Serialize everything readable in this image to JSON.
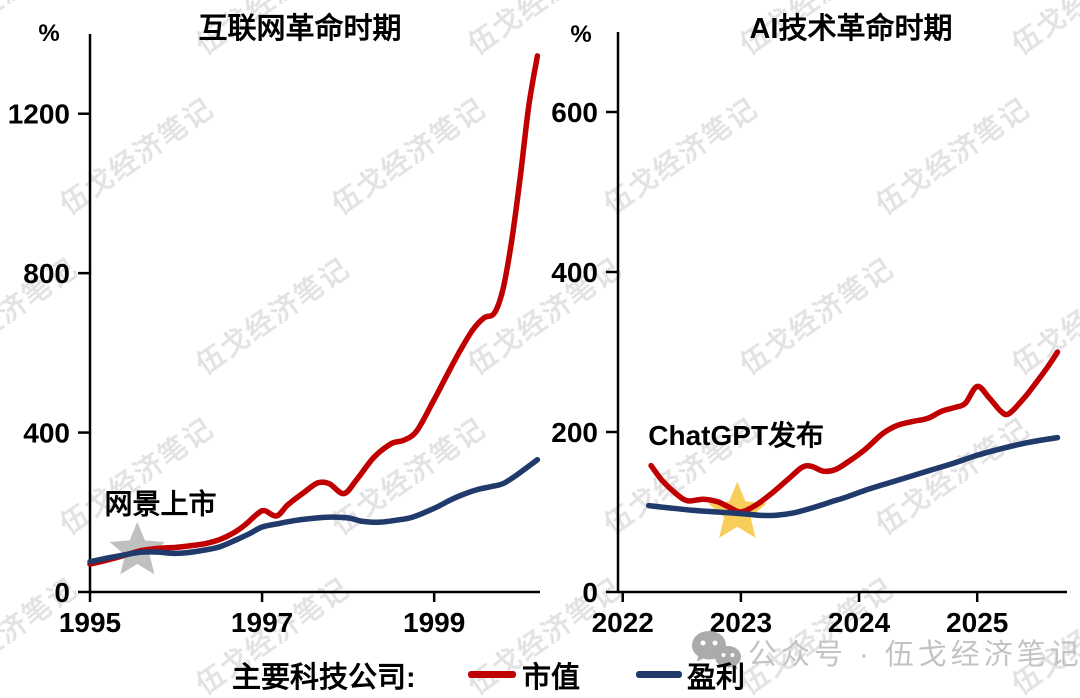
{
  "watermark": {
    "text": "伍戈经济笔记"
  },
  "footer": {
    "icon": "wechat-icon",
    "text": "公众号 · 伍戈经济笔记"
  },
  "legend": {
    "prefix": "主要科技公司:",
    "items": [
      {
        "key": "market-cap",
        "label": "市值",
        "color": "#c00000"
      },
      {
        "key": "profit",
        "label": "盈利",
        "color": "#1f3a6b"
      }
    ]
  },
  "colors": {
    "title_red": "#e60000",
    "curve_red": "#c00000",
    "curve_navy": "#1f3a6b",
    "star_gray": "#b9b9b9",
    "star_gold": "#f6c94a",
    "axis_black": "#000000"
  },
  "chart_data": [
    {
      "id": "internet-era",
      "type": "line",
      "title": "互联网革命时期",
      "unit_label": "%",
      "xlim": [
        1995,
        2000.23
      ],
      "ylim": [
        0,
        1400
      ],
      "x_ticks": [
        1995,
        1997,
        1999
      ],
      "y_ticks": [
        0,
        400,
        800,
        1200
      ],
      "grid": false,
      "legend_position": "bottom",
      "annotation": {
        "text": "网景上市",
        "star": {
          "x": 1995.55,
          "y": 103,
          "color": "#b9b9b9",
          "outer_r": 29
        },
        "label_pos": {
          "x": 1995.82,
          "y": 222
        }
      },
      "series": [
        {
          "key": "market-cap",
          "name": "市值",
          "color": "#c00000",
          "points": [
            [
              1995.0,
              70
            ],
            [
              1995.2,
              80
            ],
            [
              1995.45,
              95
            ],
            [
              1995.6,
              104
            ],
            [
              1995.8,
              110
            ],
            [
              1996.0,
              112
            ],
            [
              1996.2,
              117
            ],
            [
              1996.35,
              122
            ],
            [
              1996.5,
              131
            ],
            [
              1996.65,
              146
            ],
            [
              1996.8,
              168
            ],
            [
              1996.95,
              197
            ],
            [
              1997.03,
              204
            ],
            [
              1997.17,
              191
            ],
            [
              1997.3,
              219
            ],
            [
              1997.5,
              252
            ],
            [
              1997.65,
              274
            ],
            [
              1997.78,
              272
            ],
            [
              1997.95,
              247
            ],
            [
              1998.1,
              282
            ],
            [
              1998.3,
              338
            ],
            [
              1998.5,
              372
            ],
            [
              1998.65,
              381
            ],
            [
              1998.8,
              405
            ],
            [
              1999.0,
              483
            ],
            [
              1999.15,
              545
            ],
            [
              1999.3,
              605
            ],
            [
              1999.45,
              658
            ],
            [
              1999.58,
              688
            ],
            [
              1999.7,
              700
            ],
            [
              1999.8,
              760
            ],
            [
              1999.9,
              880
            ],
            [
              2000.0,
              1040
            ],
            [
              2000.1,
              1220
            ],
            [
              2000.2,
              1345
            ]
          ]
        },
        {
          "key": "profit",
          "name": "盈利",
          "color": "#1f3a6b",
          "points": [
            [
              1995.0,
              76
            ],
            [
              1995.2,
              85
            ],
            [
              1995.45,
              95
            ],
            [
              1995.6,
              100
            ],
            [
              1995.8,
              100
            ],
            [
              1995.95,
              97
            ],
            [
              1996.1,
              98
            ],
            [
              1996.3,
              104
            ],
            [
              1996.5,
              113
            ],
            [
              1996.7,
              131
            ],
            [
              1996.85,
              146
            ],
            [
              1997.0,
              163
            ],
            [
              1997.2,
              172
            ],
            [
              1997.4,
              180
            ],
            [
              1997.6,
              185
            ],
            [
              1997.8,
              188
            ],
            [
              1998.0,
              186
            ],
            [
              1998.15,
              178
            ],
            [
              1998.35,
              175
            ],
            [
              1998.55,
              180
            ],
            [
              1998.75,
              188
            ],
            [
              1999.0,
              210
            ],
            [
              1999.2,
              232
            ],
            [
              1999.35,
              246
            ],
            [
              1999.5,
              257
            ],
            [
              1999.65,
              264
            ],
            [
              1999.8,
              272
            ],
            [
              1999.95,
              292
            ],
            [
              2000.1,
              316
            ],
            [
              2000.2,
              332
            ]
          ]
        }
      ]
    },
    {
      "id": "ai-era",
      "type": "line",
      "title": "AI技术革命时期",
      "unit_label": "%",
      "xlim": [
        2021.96,
        2025.76
      ],
      "ylim": [
        0,
        700
      ],
      "x_ticks": [
        2022,
        2023,
        2024,
        2025
      ],
      "y_ticks": [
        0,
        200,
        400,
        600
      ],
      "grid": false,
      "legend_position": "bottom",
      "annotation": {
        "text": "ChatGPT发布",
        "star": {
          "x": 2022.97,
          "y": 99,
          "color": "#f6c94a",
          "outer_r": 31
        },
        "label_pos": {
          "x": 2022.96,
          "y": 196
        }
      },
      "series": [
        {
          "key": "market-cap",
          "name": "市值",
          "color": "#c00000",
          "points": [
            [
              2022.24,
              158
            ],
            [
              2022.33,
              140
            ],
            [
              2022.45,
              123
            ],
            [
              2022.55,
              114
            ],
            [
              2022.68,
              116
            ],
            [
              2022.8,
              113
            ],
            [
              2022.9,
              106
            ],
            [
              2023.0,
              100
            ],
            [
              2023.12,
              108
            ],
            [
              2023.25,
              122
            ],
            [
              2023.4,
              141
            ],
            [
              2023.52,
              156
            ],
            [
              2023.6,
              157
            ],
            [
              2023.7,
              151
            ],
            [
              2023.8,
              153
            ],
            [
              2023.92,
              164
            ],
            [
              2024.05,
              178
            ],
            [
              2024.2,
              198
            ],
            [
              2024.32,
              208
            ],
            [
              2024.45,
              213
            ],
            [
              2024.58,
              217
            ],
            [
              2024.7,
              226
            ],
            [
              2024.82,
              231
            ],
            [
              2024.9,
              236
            ],
            [
              2025.0,
              257
            ],
            [
              2025.1,
              243
            ],
            [
              2025.2,
              226
            ],
            [
              2025.27,
              223
            ],
            [
              2025.4,
              243
            ],
            [
              2025.5,
              262
            ],
            [
              2025.6,
              282
            ],
            [
              2025.68,
              300
            ]
          ]
        },
        {
          "key": "profit",
          "name": "盈利",
          "color": "#1f3a6b",
          "points": [
            [
              2022.22,
              108
            ],
            [
              2022.4,
              105
            ],
            [
              2022.6,
              102
            ],
            [
              2022.8,
              100
            ],
            [
              2023.0,
              98
            ],
            [
              2023.15,
              96
            ],
            [
              2023.3,
              96
            ],
            [
              2023.45,
              99
            ],
            [
              2023.6,
              105
            ],
            [
              2023.75,
              112
            ],
            [
              2023.9,
              119
            ],
            [
              2024.05,
              127
            ],
            [
              2024.2,
              134
            ],
            [
              2024.4,
              143
            ],
            [
              2024.6,
              152
            ],
            [
              2024.8,
              161
            ],
            [
              2025.0,
              171
            ],
            [
              2025.2,
              179
            ],
            [
              2025.4,
              186
            ],
            [
              2025.55,
              190
            ],
            [
              2025.68,
              193
            ]
          ]
        }
      ]
    }
  ]
}
